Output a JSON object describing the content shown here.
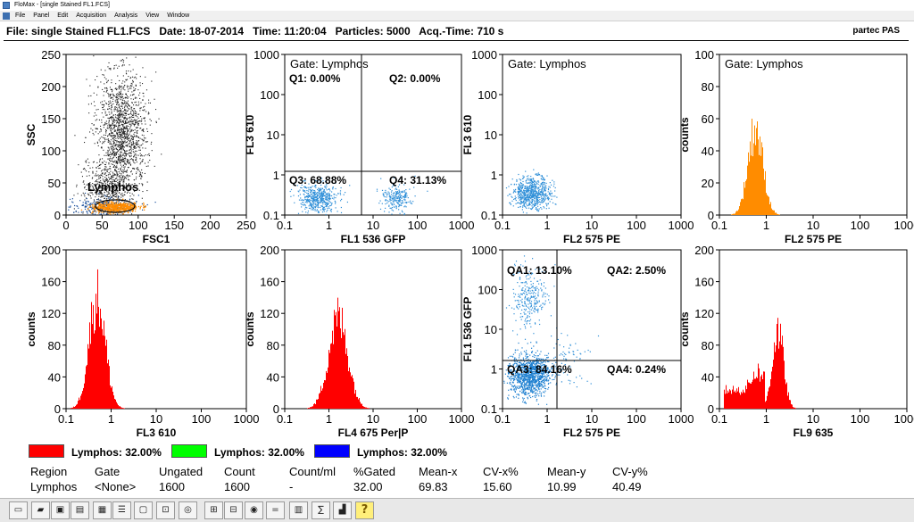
{
  "window": {
    "title": "FloMax - [single Stained FL1.FCS]",
    "menu": [
      "File",
      "Panel",
      "Edit",
      "Acquisition",
      "Analysis",
      "View",
      "Window"
    ]
  },
  "info": {
    "text": "File: single Stained FL1.FCS   Date: 18-07-2014   Time: 11:20:04   Particles: 5000   Acq.-Time: 710 s",
    "brand": "partec PAS"
  },
  "plots": [
    {
      "id": "dotplot-ssc-fsc1",
      "kind": "scatter",
      "xlabel": "FSC1",
      "ylabel": "SSC",
      "xscale": "linear",
      "yscale": "linear",
      "xticks": [
        "0",
        "50",
        "100",
        "150",
        "200",
        "250"
      ],
      "yticks": [
        "0",
        "50",
        "100",
        "150",
        "200",
        "250"
      ],
      "region_label": "Lymphos",
      "gate_label": "",
      "quadrants": []
    },
    {
      "id": "dotplot-fl3-fl1",
      "kind": "scatter",
      "xlabel": "FL1  536 GFP",
      "ylabel": "FL3  610",
      "xscale": "log",
      "yscale": "log",
      "xticks": [
        "0.1",
        "1",
        "10",
        "100",
        "1000"
      ],
      "yticks": [
        "0.1",
        "1",
        "10",
        "100",
        "1000"
      ],
      "gate_label": "Gate: Lymphos",
      "quadrants": [
        "Q1: 0.00%",
        "Q2: 0.00%",
        "Q3: 68.88%",
        "Q4: 31.13%"
      ]
    },
    {
      "id": "dotplot-fl3-fl2",
      "kind": "scatter",
      "xlabel": "FL2  575 PE",
      "ylabel": "FL3  610",
      "xscale": "log",
      "yscale": "log",
      "xticks": [
        "0.1",
        "1",
        "10",
        "100",
        "1000"
      ],
      "yticks": [
        "0.1",
        "1",
        "10",
        "100",
        "1000"
      ],
      "gate_label": "Gate: Lymphos",
      "quadrants": []
    },
    {
      "id": "histogram-fl2",
      "kind": "histogram",
      "xlabel": "FL2  575 PE",
      "ylabel": "counts",
      "xscale": "log",
      "xticks": [
        "0.1",
        "1",
        "10",
        "100",
        "1000"
      ],
      "yticks": [
        "0",
        "20",
        "40",
        "60",
        "80",
        "100"
      ],
      "gate_label": "Gate: Lymphos",
      "color": "#ff8c00"
    },
    {
      "id": "histogram-fl3",
      "kind": "histogram",
      "xlabel": "FL3  610",
      "ylabel": "counts",
      "xscale": "log",
      "xticks": [
        "0.1",
        "1",
        "10",
        "100",
        "1000"
      ],
      "yticks": [
        "0",
        "40",
        "80",
        "120",
        "160",
        "200"
      ],
      "gate_label": "",
      "color": "#ff0000"
    },
    {
      "id": "histogram-fl4",
      "kind": "histogram",
      "xlabel": "FL4  675 Per|P",
      "ylabel": "counts",
      "xscale": "log",
      "xticks": [
        "0.1",
        "1",
        "10",
        "100",
        "1000"
      ],
      "yticks": [
        "0",
        "40",
        "80",
        "120",
        "160",
        "200"
      ],
      "gate_label": "",
      "color": "#ff0000"
    },
    {
      "id": "dotplot-fl1-fl2",
      "kind": "scatter",
      "xlabel": "FL2  575 PE",
      "ylabel": "FL1  536 GFP",
      "xscale": "log",
      "yscale": "log",
      "xticks": [
        "0.1",
        "1",
        "10",
        "100",
        "1000"
      ],
      "yticks": [
        "0.1",
        "1",
        "10",
        "100",
        "1000"
      ],
      "gate_label": "",
      "quadrants": [
        "QA1: 13.10%",
        "QA2: 2.50%",
        "QA3: 84.16%",
        "QA4: 0.24%"
      ]
    },
    {
      "id": "histogram-fl9",
      "kind": "histogram",
      "xlabel": "FL9  635",
      "ylabel": "",
      "xscale": "log",
      "xticks": [
        "0.1",
        "1",
        "10",
        "100",
        "1000"
      ],
      "yticks": [
        "0",
        "40",
        "80",
        "120",
        "160",
        "200"
      ],
      "gate_label": "",
      "color": "#ff0000"
    }
  ],
  "legend": [
    {
      "color": "#ff0000",
      "label": "Lymphos: 32.00%"
    },
    {
      "color": "#00ff00",
      "label": "Lymphos: 32.00%"
    },
    {
      "color": "#0000ff",
      "label": "Lymphos: 32.00%"
    }
  ],
  "stats": {
    "headers": [
      "Region",
      "Gate",
      "Ungated",
      "Count",
      "Count/ml",
      "%Gated",
      "Mean-x",
      "CV-x%",
      "Mean-y",
      "CV-y%"
    ],
    "rows": [
      [
        "Lymphos",
        "<None>",
        "1600",
        "1600",
        "-",
        "32.00",
        "69.83",
        "15.60",
        "10.99",
        "40.49"
      ]
    ]
  },
  "toolbar": [
    "open-file",
    "open-folder",
    "save",
    "print",
    "print-preview",
    "settings",
    "region",
    "gate",
    "gate-def",
    "region-stats",
    "compensation",
    "histogram",
    "help"
  ]
}
